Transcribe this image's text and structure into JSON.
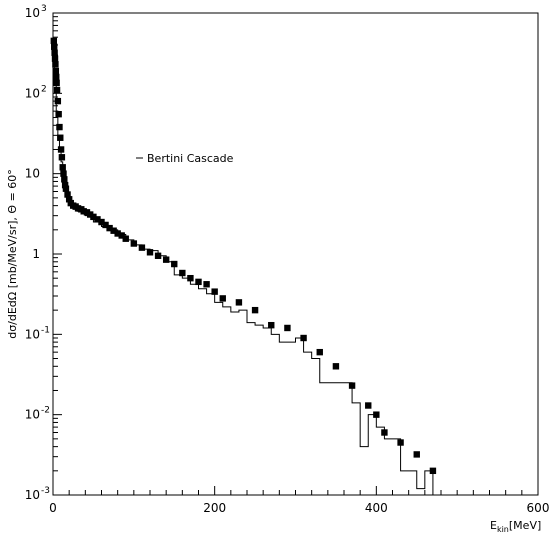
{
  "chart_data": {
    "type": "scatter",
    "title": "",
    "xlabel": "E_kin[MeV]",
    "ylabel": "dσ/dEdΩ [mb/MeV/sr], Θ = 60°",
    "xlim": [
      0,
      600
    ],
    "ylim": [
      0.001,
      1000
    ],
    "y_scale": "log",
    "grid": false,
    "legend_position": "upper-left",
    "x_ticks": [
      0,
      200,
      400,
      600
    ],
    "x_tick_labels": [
      "0",
      "200",
      "400",
      "600"
    ],
    "y_ticks": [
      0.001,
      0.01,
      0.1,
      1,
      10,
      100,
      1000
    ],
    "y_tick_labels": [
      {
        "base": "10",
        "exp": "-3"
      },
      {
        "base": "10",
        "exp": "-2"
      },
      {
        "base": "10",
        "exp": "-1"
      },
      {
        "base": "1",
        "exp": ""
      },
      {
        "base": "10",
        "exp": ""
      },
      {
        "base": "10",
        "exp": "2"
      },
      {
        "base": "10",
        "exp": "3"
      }
    ],
    "series": [
      {
        "name": "",
        "kind": "markers",
        "color": "#000000",
        "x": [
          1,
          1.5,
          2,
          2.5,
          3,
          3.5,
          4,
          4.5,
          5,
          6,
          7,
          8,
          9,
          10,
          11,
          12,
          13,
          14,
          15,
          16,
          18,
          20,
          22,
          25,
          28,
          31,
          35,
          38,
          42,
          46,
          50,
          55,
          60,
          65,
          70,
          75,
          80,
          85,
          90,
          100,
          110,
          120,
          130,
          140,
          150,
          160,
          170,
          180,
          190,
          200,
          210,
          230,
          250,
          270,
          290,
          310,
          330,
          350,
          370,
          390,
          400,
          410,
          430,
          450,
          470
        ],
        "y": [
          450,
          380,
          320,
          270,
          230,
          190,
          160,
          135,
          110,
          80,
          55,
          38,
          28,
          20,
          16,
          12,
          10,
          8.5,
          7.2,
          6.5,
          5.5,
          4.8,
          4.3,
          4.0,
          3.9,
          3.7,
          3.6,
          3.4,
          3.3,
          3.1,
          2.9,
          2.7,
          2.5,
          2.3,
          2.1,
          1.95,
          1.8,
          1.7,
          1.55,
          1.35,
          1.2,
          1.05,
          0.95,
          0.85,
          0.75,
          0.58,
          0.5,
          0.45,
          0.42,
          0.34,
          0.28,
          0.25,
          0.2,
          0.13,
          0.12,
          0.09,
          0.06,
          0.04,
          0.023,
          0.013,
          0.01,
          0.006,
          0.0045,
          0.0032,
          0.002
        ]
      },
      {
        "name": "Bertini Cascade",
        "kind": "histogram",
        "color": "#000000",
        "bin_edges": [
          0,
          2,
          4,
          6,
          8,
          10,
          12,
          14,
          16,
          18,
          20,
          25,
          30,
          35,
          40,
          50,
          60,
          70,
          80,
          90,
          100,
          110,
          120,
          130,
          140,
          150,
          160,
          170,
          180,
          190,
          200,
          210,
          220,
          230,
          240,
          250,
          260,
          270,
          280,
          290,
          300,
          310,
          320,
          330,
          340,
          350,
          360,
          370,
          380,
          390,
          400,
          410,
          420,
          430,
          440,
          450,
          460,
          470
        ],
        "values": [
          400,
          130,
          60,
          30,
          20,
          14,
          10,
          7.5,
          6,
          5.2,
          4.2,
          3.6,
          3.4,
          3.2,
          3.0,
          2.5,
          2.2,
          2.0,
          1.75,
          1.5,
          1.3,
          1.15,
          1.1,
          0.95,
          0.8,
          0.55,
          0.5,
          0.42,
          0.37,
          0.32,
          0.25,
          0.22,
          0.19,
          0.2,
          0.14,
          0.13,
          0.12,
          0.1,
          0.08,
          0.08,
          0.09,
          0.06,
          0.05,
          0.025,
          0.025,
          0.025,
          0.025,
          0.014,
          0.004,
          0.01,
          0.007,
          0.005,
          0.005,
          0.002,
          0.002,
          0.0012,
          0.002
        ]
      }
    ],
    "legend": [
      {
        "label": "Bertini Cascade",
        "marker": "line"
      }
    ]
  }
}
